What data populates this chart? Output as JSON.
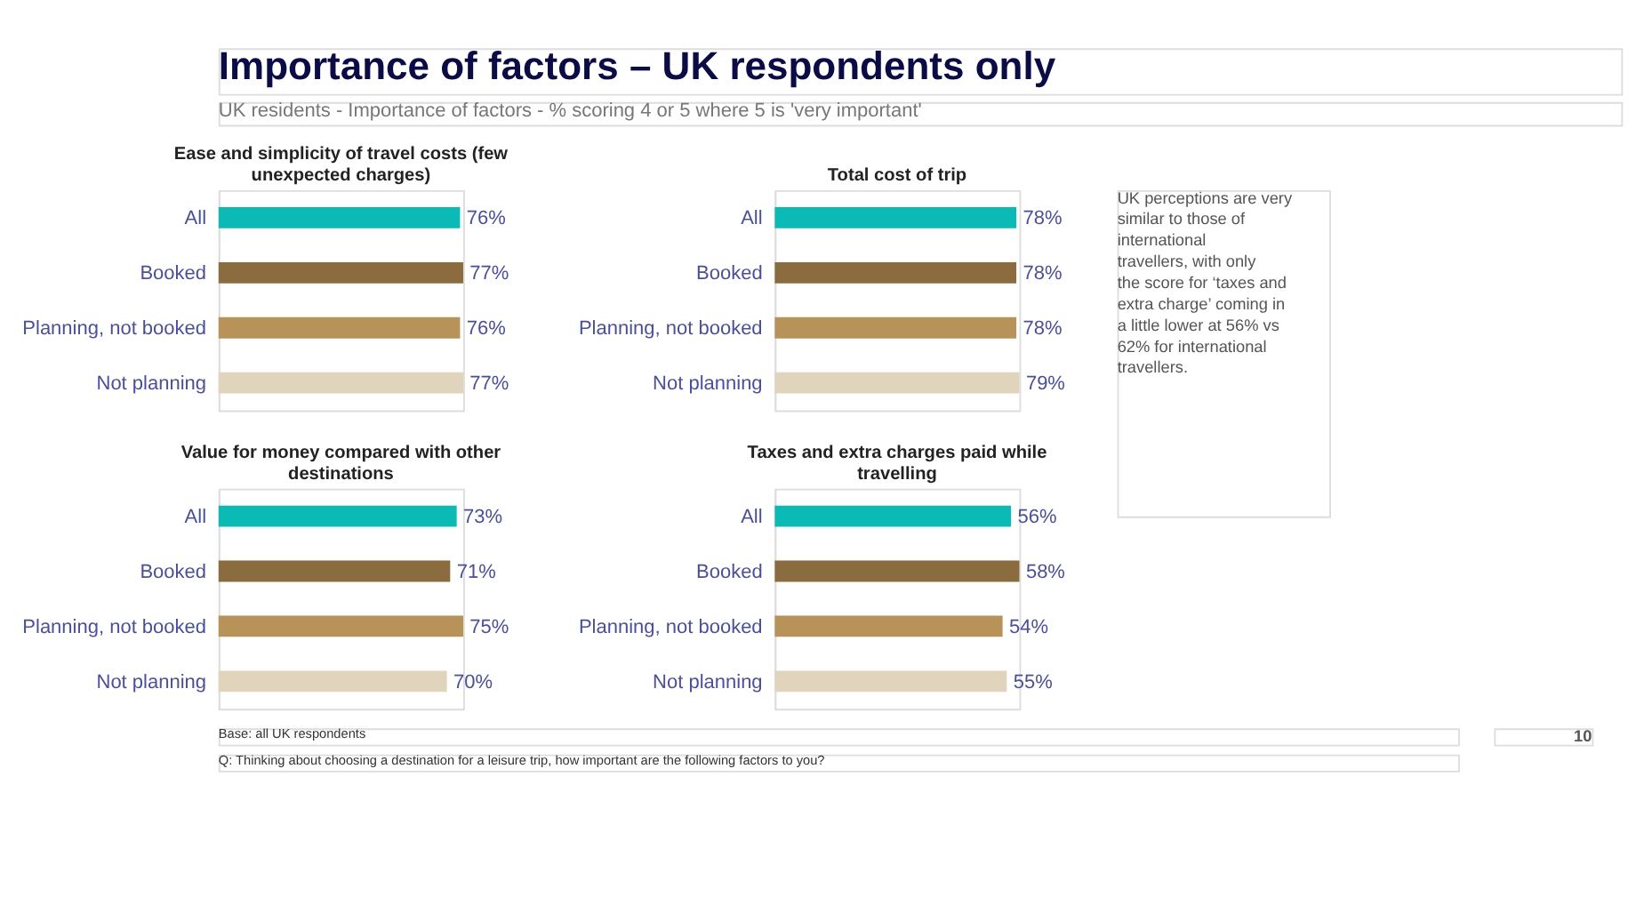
{
  "chart_data": [
    {
      "type": "other",
      "title": "Importance of factors – UK respondents only",
      "subtitle": "UK residents - Importance of factors - % scoring 4 or 5 where 5 is 'very important'",
      "annotations": [
        "Base: all UK respondents",
        "Q: Thinking about choosing a destination for a leisure trip, how important are the following factors to you?",
        "10"
      ]
    },
    {
      "type": "bar",
      "orientation": "horizontal",
      "title": "Ease and simplicity of travel costs (few unexpected charges)",
      "categories": [
        "All",
        "Booked",
        "Planning, not booked",
        "Not planning"
      ],
      "values": [
        76,
        77,
        76,
        77
      ],
      "colors": [
        "#0bbab4",
        "#8b6c3f",
        "#b79259",
        "#e1d4bd"
      ],
      "value_labels": [
        "76%",
        "77%",
        "76%",
        "77%"
      ]
    },
    {
      "type": "bar",
      "orientation": "horizontal",
      "title": "Total cost of trip",
      "categories": [
        "All",
        "Booked",
        "Planning, not booked",
        "Not planning"
      ],
      "values": [
        78,
        78,
        78,
        79
      ],
      "colors": [
        "#0bbab4",
        "#8b6c3f",
        "#b79259",
        "#e1d4bd"
      ],
      "value_labels": [
        "78%",
        "78%",
        "78%",
        "79%"
      ]
    },
    {
      "type": "bar",
      "orientation": "horizontal",
      "title": "Value for money compared with other destinations",
      "categories": [
        "All",
        "Booked",
        "Planning, not booked",
        "Not planning"
      ],
      "values": [
        73,
        71,
        75,
        70
      ],
      "colors": [
        "#0bbab4",
        "#8b6c3f",
        "#b79259",
        "#e1d4bd"
      ],
      "value_labels": [
        "73%",
        "71%",
        "75%",
        "70%"
      ]
    },
    {
      "type": "bar",
      "orientation": "horizontal",
      "title": "Taxes and extra charges paid while travelling",
      "categories": [
        "All",
        "Booked",
        "Planning, not booked",
        "Not planning"
      ],
      "values": [
        56,
        58,
        54,
        55
      ],
      "colors": [
        "#0bbab4",
        "#8b6c3f",
        "#b79259",
        "#e1d4bd"
      ],
      "value_labels": [
        "56%",
        "58%",
        "54%",
        "55%"
      ]
    },
    {
      "type": "other",
      "annotations": [
        "UK perceptions are very similar to those of international travellers, with only the score for ‘taxes and extra charge’ coming in a little lower at 56% vs 62% for international travellers."
      ]
    }
  ]
}
